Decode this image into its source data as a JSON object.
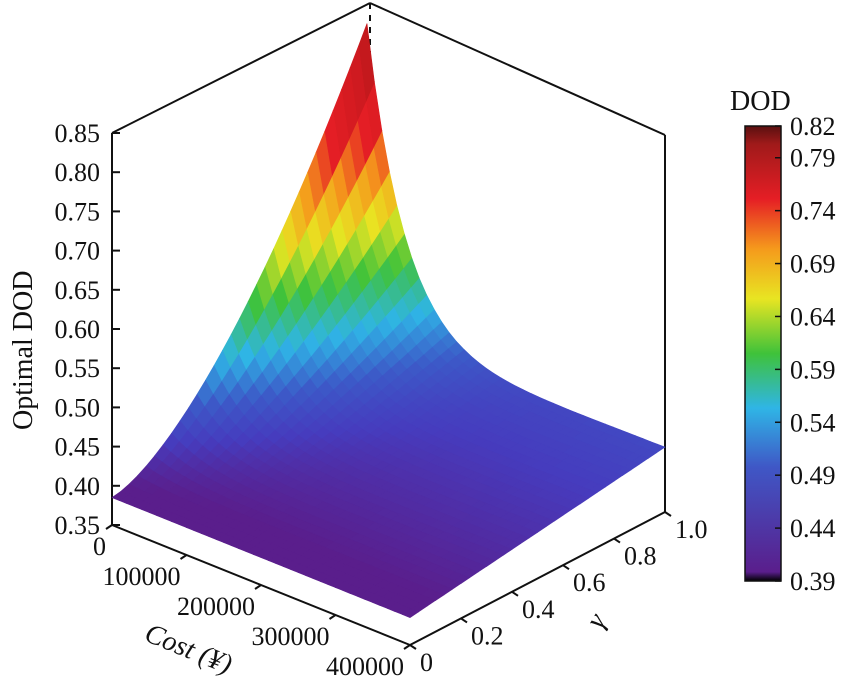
{
  "chart_data": {
    "type": "surface3d",
    "zlabel": "Optimal DOD",
    "xlabel": "Cost (¥)",
    "ylabel": "γ",
    "x_ticks": [
      "0",
      "100000",
      "200000",
      "300000",
      "400000"
    ],
    "y_ticks": [
      "0",
      "0.2",
      "0.4",
      "0.6",
      "0.8",
      "1.0"
    ],
    "z_ticks": [
      "0.35",
      "0.40",
      "0.45",
      "0.50",
      "0.55",
      "0.60",
      "0.65",
      "0.70",
      "0.75",
      "0.80",
      "0.85"
    ],
    "xlim": [
      0,
      400000
    ],
    "ylim": [
      0,
      1.0
    ],
    "zlim": [
      0.35,
      0.85
    ],
    "surface": {
      "description_values": "z(cost, gamma): max 0.82 at cost 0, gamma 1.0; min about 0.39 along low gamma",
      "corners": {
        "cost0_gamma0": 0.38,
        "cost0_gamma1": 0.82,
        "cost400000_gamma0": 0.39,
        "cost400000_gamma1": 0.43
      }
    },
    "colorbar": {
      "title": "DOD",
      "ticks": [
        "0.82",
        "0.79",
        "0.74",
        "0.69",
        "0.64",
        "0.59",
        "0.54",
        "0.49",
        "0.44",
        "0.39"
      ],
      "range": [
        0.39,
        0.82
      ],
      "colormap": [
        "#000000",
        "#5a1e8c",
        "#3f57c6",
        "#2fb5e6",
        "#3fc23a",
        "#e8e522",
        "#f59a1c",
        "#e51e25",
        "#a01a1a",
        "#5a1010"
      ]
    }
  }
}
